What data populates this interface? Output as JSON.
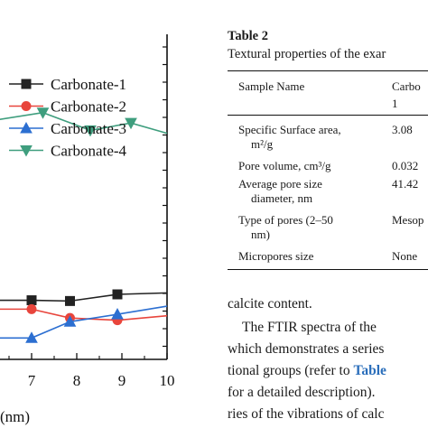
{
  "chart_data": {
    "type": "line",
    "x_ticks": [
      "7",
      "8",
      "9",
      "10"
    ],
    "x_axis_label_fragment": "(nm)",
    "series": [
      {
        "name": "Carbonate-1",
        "color": "#222222",
        "marker": "square",
        "points": [
          [
            7,
            0.4
          ],
          [
            7.85,
            0.395
          ],
          [
            8.9,
            0.44
          ],
          [
            10,
            0.45
          ]
        ]
      },
      {
        "name": "Carbonate-2",
        "color": "#e8453c",
        "marker": "circle",
        "points": [
          [
            7,
            0.34
          ],
          [
            7.85,
            0.28
          ],
          [
            8.9,
            0.265
          ],
          [
            10,
            0.295
          ]
        ]
      },
      {
        "name": "Carbonate-3",
        "color": "#2c6fd1",
        "marker": "triangle-up",
        "points": [
          [
            7,
            0.145
          ],
          [
            7.85,
            0.255
          ],
          [
            8.9,
            0.305
          ],
          [
            10,
            0.36
          ]
        ]
      },
      {
        "name": "Carbonate-4",
        "color": "#3f9e7e",
        "marker": "triangle-down",
        "points": [
          [
            6.2,
            1.62
          ],
          [
            7.25,
            1.67
          ],
          [
            8.3,
            1.55
          ],
          [
            9.2,
            1.6
          ],
          [
            10,
            1.53
          ]
        ]
      }
    ],
    "xlim": [
      5.5,
      10
    ],
    "ylim": [
      0,
      2.2
    ],
    "legend_position": "top-left"
  },
  "table": {
    "title": "Table 2",
    "caption": "Textural properties of the exar",
    "col_headers": [
      "Sample Name",
      "Carbo",
      "1"
    ],
    "rows": [
      {
        "label_lines": [
          "Specific Surface area,",
          "m²/g"
        ],
        "value": "3.08"
      },
      {
        "label_lines": [
          "Pore volume, cm³/g"
        ],
        "value": "0.032"
      },
      {
        "label_lines": [
          "Average pore size",
          "diameter, nm"
        ],
        "value": "41.42"
      },
      {
        "label_lines": [
          "Type of pores (2–50",
          "nm)"
        ],
        "value": "Mesop"
      },
      {
        "label_lines": [
          "Micropores size"
        ],
        "value": "None"
      }
    ]
  },
  "body_text": {
    "line1": "calcite content.",
    "line2": "The FTIR spectra of the",
    "line3": "which demonstrates a series",
    "line4_pre": "tional groups (refer to ",
    "line4_ref": "Table",
    "line5": "for a detailed description).",
    "line6": "ries of the vibrations of calc"
  }
}
